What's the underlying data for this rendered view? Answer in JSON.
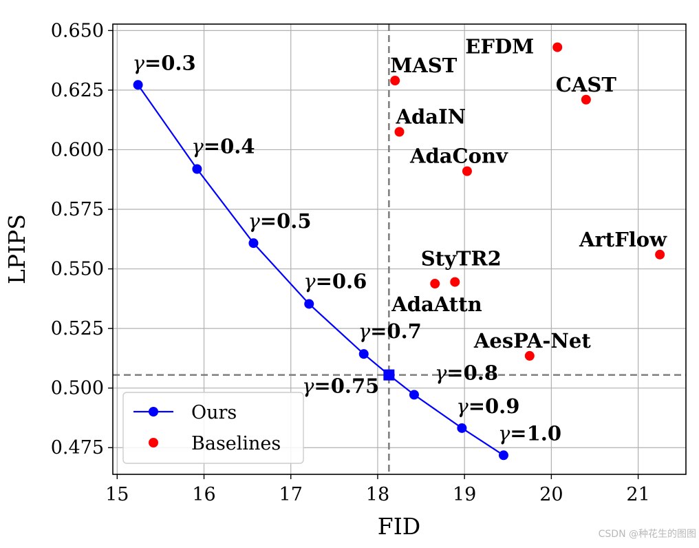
{
  "chart_data": {
    "type": "scatter",
    "xlabel": "FID",
    "ylabel": "LPIPS",
    "xlim": [
      14.95,
      21.55
    ],
    "ylim": [
      0.4638,
      0.6527
    ],
    "xticks": [
      "15",
      "16",
      "17",
      "18",
      "19",
      "20",
      "21"
    ],
    "xtick_values": [
      15,
      16,
      17,
      18,
      19,
      20,
      21
    ],
    "yticks": [
      "0.475",
      "0.500",
      "0.525",
      "0.550",
      "0.575",
      "0.600",
      "0.625",
      "0.650"
    ],
    "ytick_values": [
      0.475,
      0.5,
      0.525,
      0.55,
      0.575,
      0.6,
      0.625,
      0.65
    ],
    "grid": true,
    "reference_lines": {
      "x": 18.13,
      "y": 0.5055
    },
    "legend": {
      "position": "lower-left",
      "entries": [
        "Ours",
        "Baselines"
      ]
    },
    "series": [
      {
        "name": "Ours",
        "color": "#0000ff",
        "style": "line-marker",
        "points": [
          {
            "gamma_value": "=0.3",
            "x": 15.24,
            "y": 0.6272
          },
          {
            "gamma_value": "=0.4",
            "x": 15.92,
            "y": 0.5919
          },
          {
            "gamma_value": "=0.5",
            "x": 16.57,
            "y": 0.5608
          },
          {
            "gamma_value": "=0.6",
            "x": 17.21,
            "y": 0.5353
          },
          {
            "gamma_value": "=0.7",
            "x": 17.84,
            "y": 0.5143
          },
          {
            "gamma_value": "=0.75",
            "x": 18.13,
            "y": 0.5055,
            "marker": "square"
          },
          {
            "gamma_value": "=0.8",
            "x": 18.42,
            "y": 0.4972
          },
          {
            "gamma_value": "=0.9",
            "x": 18.97,
            "y": 0.4832
          },
          {
            "gamma_value": "=1.0",
            "x": 19.45,
            "y": 0.4718
          }
        ]
      },
      {
        "name": "Baselines",
        "color": "#ff0000",
        "style": "marker",
        "points": [
          {
            "label": "EFDM",
            "x": 20.07,
            "y": 0.643
          },
          {
            "label": "MAST",
            "x": 18.2,
            "y": 0.629
          },
          {
            "label": "CAST",
            "x": 20.4,
            "y": 0.621
          },
          {
            "label": "AdaIN",
            "x": 18.25,
            "y": 0.6075
          },
          {
            "label": "AdaConv",
            "x": 19.03,
            "y": 0.591
          },
          {
            "label": "ArtFlow",
            "x": 21.25,
            "y": 0.556
          },
          {
            "label": "StyTR2",
            "x": 18.89,
            "y": 0.5445
          },
          {
            "label": "AdaAttn",
            "x": 18.66,
            "y": 0.5438
          },
          {
            "label": "AesPA-Net",
            "x": 19.75,
            "y": 0.5135
          }
        ]
      }
    ]
  },
  "watermark": "CSDN @种花生的图图"
}
